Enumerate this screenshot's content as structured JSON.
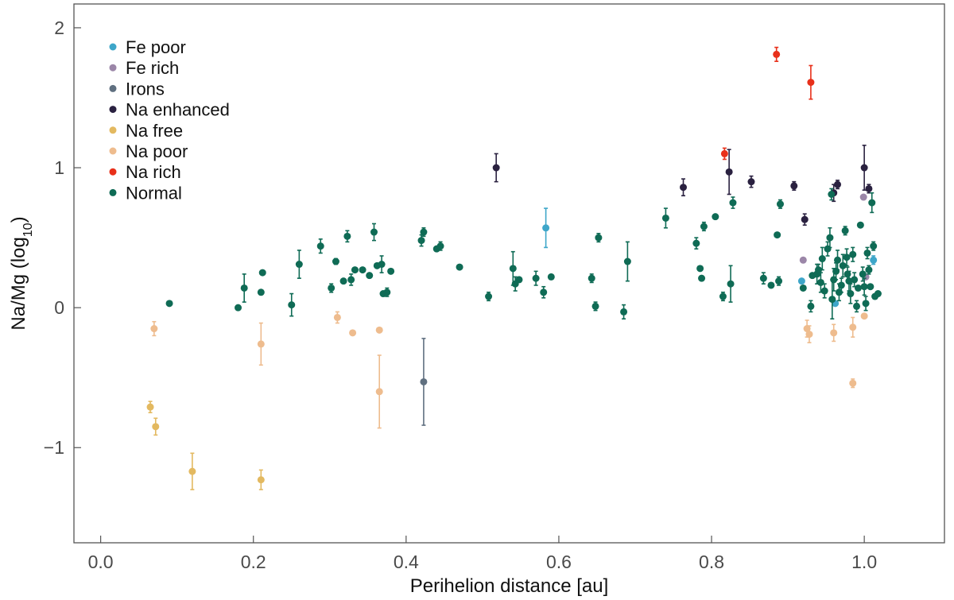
{
  "chart_data": {
    "type": "scatter",
    "title": "",
    "xlabel": "Perihelion distance [au]",
    "ylabel_main": "Na/Mg (log",
    "ylabel_sub": "10",
    "ylabel_close": ")",
    "xlim": [
      -0.035,
      1.105
    ],
    "ylim": [
      -1.68,
      2.17
    ],
    "xticks": [
      {
        "value": 0.0,
        "label": "0.0"
      },
      {
        "value": 0.2,
        "label": "0.2"
      },
      {
        "value": 0.4,
        "label": "0.4"
      },
      {
        "value": 0.6,
        "label": "0.6"
      },
      {
        "value": 0.8,
        "label": "0.8"
      },
      {
        "value": 1.0,
        "label": "1.0"
      }
    ],
    "yticks": [
      {
        "value": -1,
        "label": "−1"
      },
      {
        "value": 0,
        "label": "0"
      },
      {
        "value": 1,
        "label": "1"
      },
      {
        "value": 2,
        "label": "2"
      }
    ],
    "legend_position": "top-left",
    "series": [
      {
        "name": "Fe poor",
        "color": "#3ea6c9",
        "points": [
          [
            0.583,
            0.57,
            0.14
          ],
          [
            0.918,
            0.19,
            0.0
          ],
          [
            0.962,
            0.03,
            0.0
          ],
          [
            1.012,
            0.34,
            0.03
          ]
        ]
      },
      {
        "name": "Fe rich",
        "color": "#9b86a8",
        "points": [
          [
            0.92,
            0.34,
            0.0
          ],
          [
            0.999,
            0.79,
            0.0
          ],
          [
            1.002,
            0.22,
            0.0
          ]
        ]
      },
      {
        "name": "Irons",
        "color": "#607080",
        "points": [
          [
            0.423,
            -0.53,
            0.31
          ]
        ]
      },
      {
        "name": "Na enhanced",
        "color": "#2a2140",
        "points": [
          [
            0.518,
            1.0,
            0.1
          ],
          [
            0.763,
            0.86,
            0.06
          ],
          [
            0.823,
            0.97,
            0.16
          ],
          [
            0.852,
            0.9,
            0.04
          ],
          [
            0.908,
            0.87,
            0.03
          ],
          [
            0.922,
            0.63,
            0.04
          ],
          [
            0.96,
            0.82,
            0.06
          ],
          [
            0.965,
            0.88,
            0.03
          ],
          [
            1.0,
            1.0,
            0.16
          ],
          [
            1.006,
            0.85,
            0.03
          ]
        ]
      },
      {
        "name": "Na free",
        "color": "#e3b960",
        "points": [
          [
            0.065,
            -0.71,
            0.04
          ],
          [
            0.072,
            -0.85,
            0.06
          ],
          [
            0.12,
            -1.17,
            0.13
          ],
          [
            0.21,
            -1.23,
            0.07
          ]
        ]
      },
      {
        "name": "Na poor",
        "color": "#eebc8e",
        "points": [
          [
            0.07,
            -0.15,
            0.05
          ],
          [
            0.21,
            -0.26,
            0.15
          ],
          [
            0.31,
            -0.07,
            0.04
          ],
          [
            0.33,
            -0.18,
            0.0
          ],
          [
            0.365,
            -0.6,
            0.26
          ],
          [
            0.365,
            -0.16,
            0.0
          ],
          [
            0.925,
            -0.15,
            0.06
          ],
          [
            0.928,
            -0.19,
            0.06
          ],
          [
            0.96,
            -0.18,
            0.06
          ],
          [
            0.985,
            -0.14,
            0.07
          ],
          [
            0.985,
            -0.54,
            0.03
          ],
          [
            1.0,
            -0.06,
            0.0
          ]
        ]
      },
      {
        "name": "Na rich",
        "color": "#e8301a",
        "points": [
          [
            0.817,
            1.1,
            0.04
          ],
          [
            0.885,
            1.81,
            0.05
          ],
          [
            0.93,
            1.61,
            0.12
          ]
        ]
      },
      {
        "name": "Normal",
        "color": "#0f6b55",
        "points": [
          [
            0.09,
            0.03,
            0.0
          ],
          [
            0.18,
            0.0,
            0.0
          ],
          [
            0.188,
            0.14,
            0.1
          ],
          [
            0.21,
            0.11,
            0.0
          ],
          [
            0.212,
            0.25,
            0.0
          ],
          [
            0.25,
            0.02,
            0.08
          ],
          [
            0.26,
            0.31,
            0.1
          ],
          [
            0.288,
            0.44,
            0.05
          ],
          [
            0.302,
            0.14,
            0.03
          ],
          [
            0.308,
            0.33,
            0.02
          ],
          [
            0.318,
            0.19,
            0.0
          ],
          [
            0.323,
            0.51,
            0.04
          ],
          [
            0.328,
            0.2,
            0.04
          ],
          [
            0.333,
            0.27,
            0.0
          ],
          [
            0.343,
            0.27,
            0.0
          ],
          [
            0.352,
            0.23,
            0.0
          ],
          [
            0.358,
            0.54,
            0.06
          ],
          [
            0.362,
            0.3,
            0.0
          ],
          [
            0.368,
            0.31,
            0.06
          ],
          [
            0.37,
            0.1,
            0.0
          ],
          [
            0.375,
            0.11,
            0.03
          ],
          [
            0.38,
            0.26,
            0.0
          ],
          [
            0.42,
            0.48,
            0.04
          ],
          [
            0.423,
            0.54,
            0.03
          ],
          [
            0.44,
            0.42,
            0.0
          ],
          [
            0.445,
            0.44,
            0.03
          ],
          [
            0.47,
            0.29,
            0.0
          ],
          [
            0.508,
            0.08,
            0.03
          ],
          [
            0.54,
            0.28,
            0.12
          ],
          [
            0.543,
            0.17,
            0.05
          ],
          [
            0.548,
            0.2,
            0.0
          ],
          [
            0.57,
            0.21,
            0.05
          ],
          [
            0.58,
            0.11,
            0.04
          ],
          [
            0.59,
            0.22,
            0.0
          ],
          [
            0.643,
            0.21,
            0.03
          ],
          [
            0.648,
            0.01,
            0.03
          ],
          [
            0.652,
            0.5,
            0.03
          ],
          [
            0.685,
            -0.03,
            0.05
          ],
          [
            0.69,
            0.33,
            0.14
          ],
          [
            0.74,
            0.64,
            0.07
          ],
          [
            0.78,
            0.46,
            0.04
          ],
          [
            0.785,
            0.28,
            0.0
          ],
          [
            0.787,
            0.21,
            0.0
          ],
          [
            0.79,
            0.58,
            0.03
          ],
          [
            0.805,
            0.65,
            0.0
          ],
          [
            0.815,
            0.08,
            0.03
          ],
          [
            0.825,
            0.17,
            0.13
          ],
          [
            0.828,
            0.75,
            0.04
          ],
          [
            0.868,
            0.21,
            0.04
          ],
          [
            0.878,
            0.16,
            0.0
          ],
          [
            0.886,
            0.52,
            0.0
          ],
          [
            0.888,
            0.19,
            0.03
          ],
          [
            0.89,
            0.74,
            0.03
          ],
          [
            0.92,
            0.14,
            0.0
          ],
          [
            0.93,
            0.01,
            0.04
          ],
          [
            0.932,
            0.23,
            0.0
          ],
          [
            0.938,
            0.24,
            0.07
          ],
          [
            0.94,
            0.27,
            0.04
          ],
          [
            0.943,
            0.18,
            0.07
          ],
          [
            0.945,
            0.35,
            0.08
          ],
          [
            0.948,
            0.12,
            0.05
          ],
          [
            0.952,
            0.42,
            0.05
          ],
          [
            0.955,
            0.5,
            0.07
          ],
          [
            0.957,
            0.81,
            0.04
          ],
          [
            0.958,
            0.06,
            0.14
          ],
          [
            0.96,
            0.2,
            0.08
          ],
          [
            0.963,
            0.26,
            0.06
          ],
          [
            0.965,
            0.34,
            0.07
          ],
          [
            0.967,
            0.11,
            0.06
          ],
          [
            0.97,
            0.16,
            0.05
          ],
          [
            0.972,
            0.3,
            0.08
          ],
          [
            0.975,
            0.55,
            0.03
          ],
          [
            0.977,
            0.36,
            0.06
          ],
          [
            0.978,
            0.24,
            0.05
          ],
          [
            0.98,
            0.19,
            0.07
          ],
          [
            0.982,
            0.1,
            0.07
          ],
          [
            0.985,
            0.38,
            0.05
          ],
          [
            0.987,
            0.2,
            0.05
          ],
          [
            0.99,
            0.01,
            0.04
          ],
          [
            0.992,
            0.14,
            0.0
          ],
          [
            0.995,
            0.59,
            0.0
          ],
          [
            0.998,
            0.24,
            0.05
          ],
          [
            1.0,
            0.15,
            0.06
          ],
          [
            1.002,
            0.03,
            0.05
          ],
          [
            1.004,
            0.39,
            0.04
          ],
          [
            1.006,
            0.27,
            0.03
          ],
          [
            1.008,
            0.15,
            0.0
          ],
          [
            1.01,
            0.75,
            0.07
          ],
          [
            1.012,
            0.44,
            0.03
          ],
          [
            1.014,
            0.08,
            0.0
          ],
          [
            1.018,
            0.1,
            0.0
          ]
        ]
      }
    ]
  }
}
